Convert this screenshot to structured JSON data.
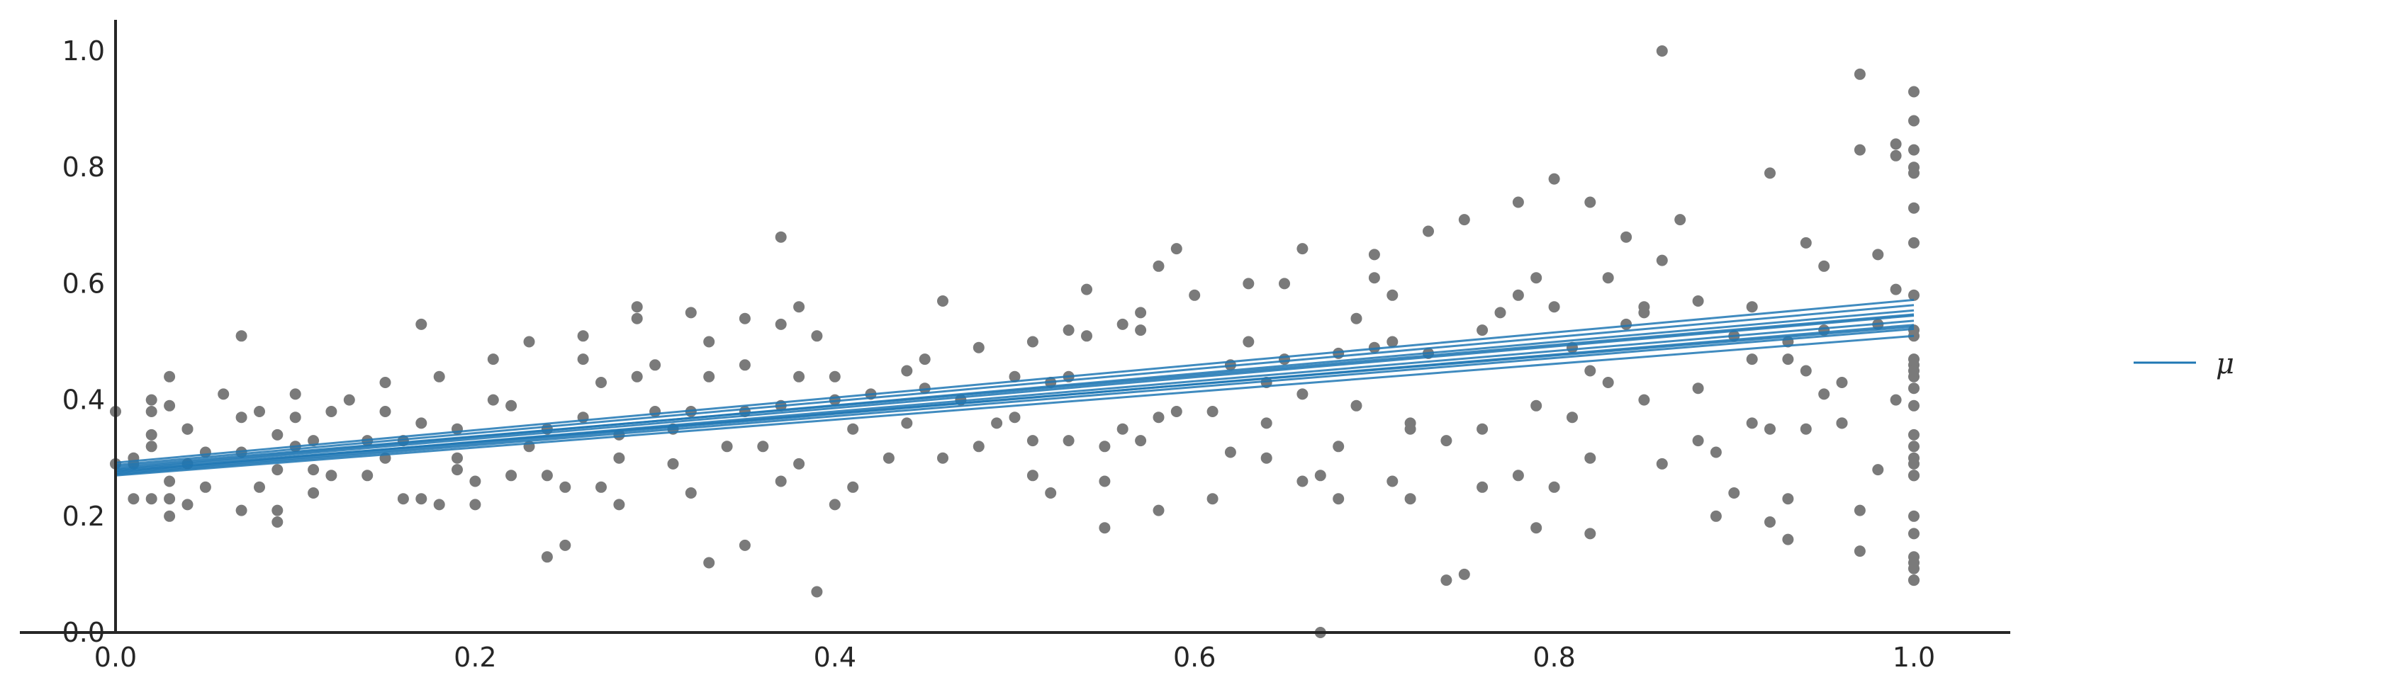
{
  "chart_data": {
    "type": "scatter",
    "title": "",
    "xlabel": "",
    "ylabel": "",
    "xlim": [
      0.0,
      1.08
    ],
    "ylim": [
      0.0,
      1.05
    ],
    "grid": false,
    "legend_position": "right",
    "xticks": [
      "0.0",
      "0.2",
      "0.4",
      "0.6",
      "0.8",
      "1.0"
    ],
    "yticks": [
      "0.0",
      "0.2",
      "0.4",
      "0.6",
      "0.8",
      "1.0"
    ],
    "colors": {
      "points": "#7a7a7a",
      "lines": "#1f77b4",
      "axis": "#262626"
    },
    "series": [
      {
        "name": "μ",
        "kind": "regression_lines",
        "lines": [
          {
            "intercept": 0.27,
            "slope": 0.24
          },
          {
            "intercept": 0.272,
            "slope": 0.25
          },
          {
            "intercept": 0.274,
            "slope": 0.255
          },
          {
            "intercept": 0.276,
            "slope": 0.26
          },
          {
            "intercept": 0.278,
            "slope": 0.248
          },
          {
            "intercept": 0.28,
            "slope": 0.265
          },
          {
            "intercept": 0.282,
            "slope": 0.272
          },
          {
            "intercept": 0.285,
            "slope": 0.262
          },
          {
            "intercept": 0.288,
            "slope": 0.275
          },
          {
            "intercept": 0.292,
            "slope": 0.28
          }
        ]
      },
      {
        "name": "",
        "kind": "observations",
        "points": [
          [
            0.0,
            0.38
          ],
          [
            0.0,
            0.29
          ],
          [
            0.01,
            0.3
          ],
          [
            0.01,
            0.23
          ],
          [
            0.01,
            0.29
          ],
          [
            0.02,
            0.23
          ],
          [
            0.02,
            0.34
          ],
          [
            0.02,
            0.4
          ],
          [
            0.02,
            0.38
          ],
          [
            0.02,
            0.32
          ],
          [
            0.03,
            0.26
          ],
          [
            0.03,
            0.39
          ],
          [
            0.03,
            0.44
          ],
          [
            0.03,
            0.2
          ],
          [
            0.03,
            0.23
          ],
          [
            0.04,
            0.35
          ],
          [
            0.04,
            0.22
          ],
          [
            0.04,
            0.35
          ],
          [
            0.04,
            0.29
          ],
          [
            0.05,
            0.31
          ],
          [
            0.05,
            0.25
          ],
          [
            0.06,
            0.41
          ],
          [
            0.07,
            0.51
          ],
          [
            0.07,
            0.21
          ],
          [
            0.07,
            0.31
          ],
          [
            0.07,
            0.37
          ],
          [
            0.08,
            0.25
          ],
          [
            0.08,
            0.38
          ],
          [
            0.09,
            0.34
          ],
          [
            0.09,
            0.19
          ],
          [
            0.09,
            0.28
          ],
          [
            0.09,
            0.21
          ],
          [
            0.1,
            0.41
          ],
          [
            0.1,
            0.32
          ],
          [
            0.1,
            0.37
          ],
          [
            0.11,
            0.24
          ],
          [
            0.11,
            0.28
          ],
          [
            0.11,
            0.33
          ],
          [
            0.12,
            0.38
          ],
          [
            0.12,
            0.27
          ],
          [
            0.13,
            0.4
          ],
          [
            0.14,
            0.33
          ],
          [
            0.14,
            0.27
          ],
          [
            0.15,
            0.43
          ],
          [
            0.15,
            0.38
          ],
          [
            0.15,
            0.3
          ],
          [
            0.16,
            0.23
          ],
          [
            0.16,
            0.33
          ],
          [
            0.17,
            0.36
          ],
          [
            0.17,
            0.53
          ],
          [
            0.17,
            0.23
          ],
          [
            0.18,
            0.44
          ],
          [
            0.18,
            0.22
          ],
          [
            0.19,
            0.35
          ],
          [
            0.19,
            0.3
          ],
          [
            0.19,
            0.28
          ],
          [
            0.2,
            0.26
          ],
          [
            0.2,
            0.22
          ],
          [
            0.21,
            0.47
          ],
          [
            0.21,
            0.4
          ],
          [
            0.22,
            0.27
          ],
          [
            0.22,
            0.39
          ],
          [
            0.23,
            0.5
          ],
          [
            0.23,
            0.32
          ],
          [
            0.24,
            0.35
          ],
          [
            0.24,
            0.27
          ],
          [
            0.24,
            0.13
          ],
          [
            0.25,
            0.15
          ],
          [
            0.25,
            0.25
          ],
          [
            0.26,
            0.51
          ],
          [
            0.26,
            0.47
          ],
          [
            0.26,
            0.37
          ],
          [
            0.27,
            0.25
          ],
          [
            0.27,
            0.43
          ],
          [
            0.28,
            0.34
          ],
          [
            0.28,
            0.3
          ],
          [
            0.28,
            0.22
          ],
          [
            0.29,
            0.54
          ],
          [
            0.29,
            0.56
          ],
          [
            0.29,
            0.44
          ],
          [
            0.3,
            0.38
          ],
          [
            0.3,
            0.46
          ],
          [
            0.31,
            0.29
          ],
          [
            0.31,
            0.35
          ],
          [
            0.32,
            0.55
          ],
          [
            0.32,
            0.38
          ],
          [
            0.32,
            0.24
          ],
          [
            0.33,
            0.5
          ],
          [
            0.33,
            0.44
          ],
          [
            0.33,
            0.12
          ],
          [
            0.34,
            0.32
          ],
          [
            0.35,
            0.54
          ],
          [
            0.35,
            0.46
          ],
          [
            0.35,
            0.38
          ],
          [
            0.35,
            0.15
          ],
          [
            0.36,
            0.32
          ],
          [
            0.37,
            0.39
          ],
          [
            0.37,
            0.26
          ],
          [
            0.37,
            0.68
          ],
          [
            0.37,
            0.53
          ],
          [
            0.38,
            0.56
          ],
          [
            0.38,
            0.44
          ],
          [
            0.38,
            0.29
          ],
          [
            0.39,
            0.51
          ],
          [
            0.39,
            0.07
          ],
          [
            0.4,
            0.44
          ],
          [
            0.4,
            0.4
          ],
          [
            0.4,
            0.22
          ],
          [
            0.41,
            0.35
          ],
          [
            0.41,
            0.25
          ],
          [
            0.42,
            0.41
          ],
          [
            0.43,
            0.3
          ],
          [
            0.44,
            0.45
          ],
          [
            0.44,
            0.36
          ],
          [
            0.45,
            0.47
          ],
          [
            0.45,
            0.42
          ],
          [
            0.46,
            0.57
          ],
          [
            0.46,
            0.3
          ],
          [
            0.47,
            0.4
          ],
          [
            0.48,
            0.49
          ],
          [
            0.48,
            0.32
          ],
          [
            0.49,
            0.36
          ],
          [
            0.5,
            0.44
          ],
          [
            0.5,
            0.37
          ],
          [
            0.51,
            0.33
          ],
          [
            0.51,
            0.27
          ],
          [
            0.51,
            0.5
          ],
          [
            0.52,
            0.43
          ],
          [
            0.52,
            0.24
          ],
          [
            0.53,
            0.52
          ],
          [
            0.53,
            0.44
          ],
          [
            0.53,
            0.33
          ],
          [
            0.54,
            0.59
          ],
          [
            0.54,
            0.51
          ],
          [
            0.55,
            0.32
          ],
          [
            0.55,
            0.26
          ],
          [
            0.55,
            0.18
          ],
          [
            0.56,
            0.53
          ],
          [
            0.56,
            0.35
          ],
          [
            0.57,
            0.55
          ],
          [
            0.57,
            0.33
          ],
          [
            0.57,
            0.52
          ],
          [
            0.58,
            0.37
          ],
          [
            0.58,
            0.63
          ],
          [
            0.58,
            0.21
          ],
          [
            0.59,
            0.38
          ],
          [
            0.59,
            0.66
          ],
          [
            0.6,
            0.58
          ],
          [
            0.61,
            0.23
          ],
          [
            0.61,
            0.38
          ],
          [
            0.62,
            0.46
          ],
          [
            0.62,
            0.31
          ],
          [
            0.63,
            0.6
          ],
          [
            0.63,
            0.5
          ],
          [
            0.64,
            0.43
          ],
          [
            0.64,
            0.3
          ],
          [
            0.64,
            0.36
          ],
          [
            0.65,
            0.47
          ],
          [
            0.65,
            0.6
          ],
          [
            0.66,
            0.66
          ],
          [
            0.66,
            0.41
          ],
          [
            0.66,
            0.26
          ],
          [
            0.67,
            0.27
          ],
          [
            0.67,
            0.0
          ],
          [
            0.68,
            0.48
          ],
          [
            0.68,
            0.32
          ],
          [
            0.68,
            0.23
          ],
          [
            0.69,
            0.54
          ],
          [
            0.69,
            0.39
          ],
          [
            0.7,
            0.65
          ],
          [
            0.7,
            0.49
          ],
          [
            0.7,
            0.61
          ],
          [
            0.71,
            0.58
          ],
          [
            0.71,
            0.5
          ],
          [
            0.71,
            0.26
          ],
          [
            0.72,
            0.35
          ],
          [
            0.72,
            0.23
          ],
          [
            0.72,
            0.36
          ],
          [
            0.73,
            0.69
          ],
          [
            0.73,
            0.48
          ],
          [
            0.74,
            0.33
          ],
          [
            0.74,
            0.09
          ],
          [
            0.75,
            0.71
          ],
          [
            0.75,
            0.1
          ],
          [
            0.76,
            0.52
          ],
          [
            0.76,
            0.35
          ],
          [
            0.76,
            0.25
          ],
          [
            0.77,
            0.55
          ],
          [
            0.78,
            0.58
          ],
          [
            0.78,
            0.74
          ],
          [
            0.78,
            0.27
          ],
          [
            0.79,
            0.61
          ],
          [
            0.79,
            0.18
          ],
          [
            0.79,
            0.39
          ],
          [
            0.8,
            0.56
          ],
          [
            0.8,
            0.78
          ],
          [
            0.8,
            0.25
          ],
          [
            0.81,
            0.49
          ],
          [
            0.81,
            0.37
          ],
          [
            0.82,
            0.74
          ],
          [
            0.82,
            0.45
          ],
          [
            0.82,
            0.3
          ],
          [
            0.82,
            0.17
          ],
          [
            0.83,
            0.61
          ],
          [
            0.83,
            0.43
          ],
          [
            0.84,
            0.53
          ],
          [
            0.84,
            0.68
          ],
          [
            0.85,
            0.55
          ],
          [
            0.85,
            0.4
          ],
          [
            0.85,
            0.56
          ],
          [
            0.86,
            0.64
          ],
          [
            0.86,
            0.29
          ],
          [
            0.86,
            1.0
          ],
          [
            0.87,
            0.71
          ],
          [
            0.88,
            0.57
          ],
          [
            0.88,
            0.33
          ],
          [
            0.88,
            0.42
          ],
          [
            0.89,
            0.31
          ],
          [
            0.89,
            0.2
          ],
          [
            0.9,
            0.24
          ],
          [
            0.9,
            0.51
          ],
          [
            0.91,
            0.47
          ],
          [
            0.91,
            0.56
          ],
          [
            0.91,
            0.36
          ],
          [
            0.92,
            0.19
          ],
          [
            0.92,
            0.35
          ],
          [
            0.92,
            0.79
          ],
          [
            0.93,
            0.16
          ],
          [
            0.93,
            0.47
          ],
          [
            0.93,
            0.5
          ],
          [
            0.93,
            0.23
          ],
          [
            0.94,
            0.67
          ],
          [
            0.94,
            0.45
          ],
          [
            0.94,
            0.35
          ],
          [
            0.95,
            0.52
          ],
          [
            0.95,
            0.63
          ],
          [
            0.95,
            0.41
          ],
          [
            0.96,
            0.36
          ],
          [
            0.96,
            0.43
          ],
          [
            0.96,
            0.36
          ],
          [
            0.97,
            0.96
          ],
          [
            0.97,
            0.83
          ],
          [
            0.97,
            0.21
          ],
          [
            0.97,
            0.14
          ],
          [
            0.98,
            0.65
          ],
          [
            0.98,
            0.53
          ],
          [
            0.98,
            0.28
          ],
          [
            0.99,
            0.84
          ],
          [
            0.99,
            0.82
          ],
          [
            0.99,
            0.59
          ],
          [
            0.99,
            0.4
          ],
          [
            1.0,
            0.83
          ],
          [
            1.0,
            0.8
          ],
          [
            1.0,
            0.51
          ],
          [
            1.0,
            0.34
          ],
          [
            1.0,
            0.42
          ],
          [
            1.0,
            0.46
          ],
          [
            1.0,
            0.29
          ],
          [
            1.0,
            0.3
          ],
          [
            1.0,
            0.17
          ],
          [
            1.0,
            0.11
          ],
          [
            1.0,
            0.47
          ],
          [
            1.0,
            0.45
          ],
          [
            1.0,
            0.09
          ],
          [
            1.0,
            0.58
          ],
          [
            1.0,
            0.73
          ],
          [
            1.0,
            0.79
          ],
          [
            1.0,
            0.2
          ],
          [
            1.0,
            0.12
          ],
          [
            1.0,
            0.27
          ],
          [
            1.0,
            0.88
          ],
          [
            1.0,
            0.93
          ],
          [
            1.0,
            0.52
          ],
          [
            1.0,
            0.27
          ],
          [
            1.0,
            0.13
          ],
          [
            1.0,
            0.09
          ],
          [
            1.0,
            0.39
          ],
          [
            1.0,
            0.44
          ],
          [
            1.0,
            0.67
          ],
          [
            1.0,
            0.32
          ]
        ]
      }
    ],
    "legend": [
      {
        "label": "μ",
        "marker": "line",
        "color": "#1f77b4"
      }
    ]
  }
}
